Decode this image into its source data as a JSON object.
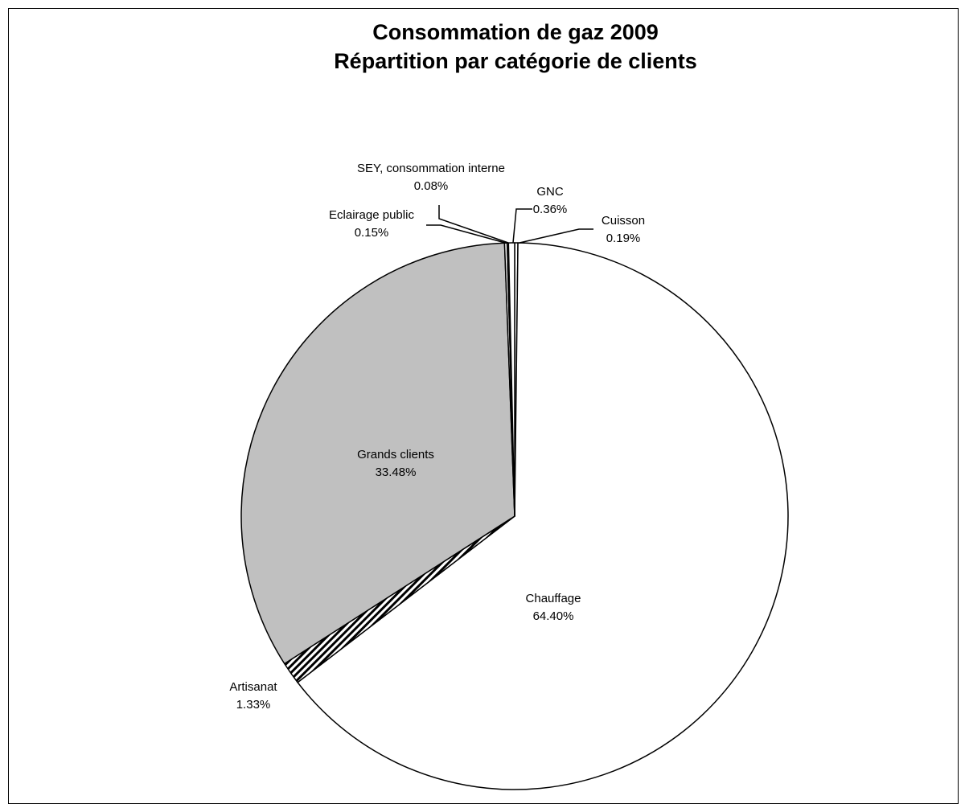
{
  "chart_data": {
    "type": "pie",
    "title": "Consommation de gaz 2009",
    "subtitle": "Répartition par catégorie de clients",
    "slices": [
      {
        "name": "Cuisson",
        "value": 0.19,
        "label": "0.19%",
        "fill": "#ffffff"
      },
      {
        "name": "Chauffage",
        "value": 64.4,
        "label": "64.40%",
        "fill": "#ffffff"
      },
      {
        "name": "Artisanat",
        "value": 1.33,
        "label": "1.33%",
        "fill": "pattern"
      },
      {
        "name": "Grands clients",
        "value": 33.48,
        "label": "33.48%",
        "fill": "#c0c0c0"
      },
      {
        "name": "Eclairage public",
        "value": 0.15,
        "label": "0.15%",
        "fill": "#ffffff"
      },
      {
        "name": "SEY, consommation interne",
        "value": 0.08,
        "label": "0.08%",
        "fill": "#ffffff"
      },
      {
        "name": "GNC",
        "value": 0.36,
        "label": "0.36%",
        "fill": "#ffffff"
      }
    ],
    "legend": false
  }
}
